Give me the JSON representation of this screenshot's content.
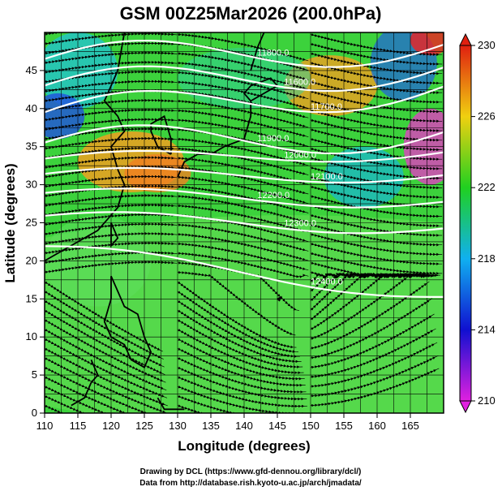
{
  "chart_data": {
    "type": "heatmap",
    "title": "GSM 00Z25Mar2026 (200.0hPa)",
    "xlabel": "Longitude (degrees)",
    "ylabel": "Latitude  (degrees)",
    "xlim": [
      110,
      170
    ],
    "ylim": [
      0,
      50
    ],
    "x_ticks": [
      110,
      115,
      120,
      125,
      130,
      135,
      140,
      145,
      150,
      155,
      160,
      165
    ],
    "y_ticks": [
      0,
      5,
      10,
      15,
      20,
      25,
      30,
      35,
      40,
      45
    ],
    "grid_spacing": 2.5,
    "colorbar": {
      "min": 210,
      "max": 230,
      "ticks": [
        210,
        214,
        218,
        222,
        226,
        230
      ],
      "colors": [
        "#e020e0",
        "#1010d0",
        "#10b0f0",
        "#20d020",
        "#f0d010",
        "#e02010"
      ]
    },
    "contours": [
      {
        "label": "11800.0",
        "lat_west": 45.5,
        "lat_east": 49.0
      },
      {
        "label": "11600.0",
        "lat_west": 42.0,
        "lat_east": 46.0
      },
      {
        "label": "11700.0",
        "lat_west": 38.5,
        "lat_east": 43.5
      },
      {
        "label": "11900.0",
        "lat_west": 34.5,
        "lat_east": 37.5
      },
      {
        "label": "12000.0",
        "lat_west": 33.0,
        "lat_east": 34.5
      },
      {
        "label": "12100.0",
        "lat_west": 31.0,
        "lat_east": 31.5
      },
      {
        "label": "12200.0",
        "lat_west": 28.5,
        "lat_east": 28.0
      },
      {
        "label": "12300.0",
        "lat_west": 25.5,
        "lat_east": 24.5
      },
      {
        "label": "12400.0",
        "lat_west": 21.5,
        "lat_east": 15.5
      }
    ],
    "credits": [
      "Drawing by DCL (https://www.gfd-dennou.org/library/dcl/)",
      "Data from http://database.rish.kyoto-u.ac.jp/arch/jmadata/"
    ]
  }
}
